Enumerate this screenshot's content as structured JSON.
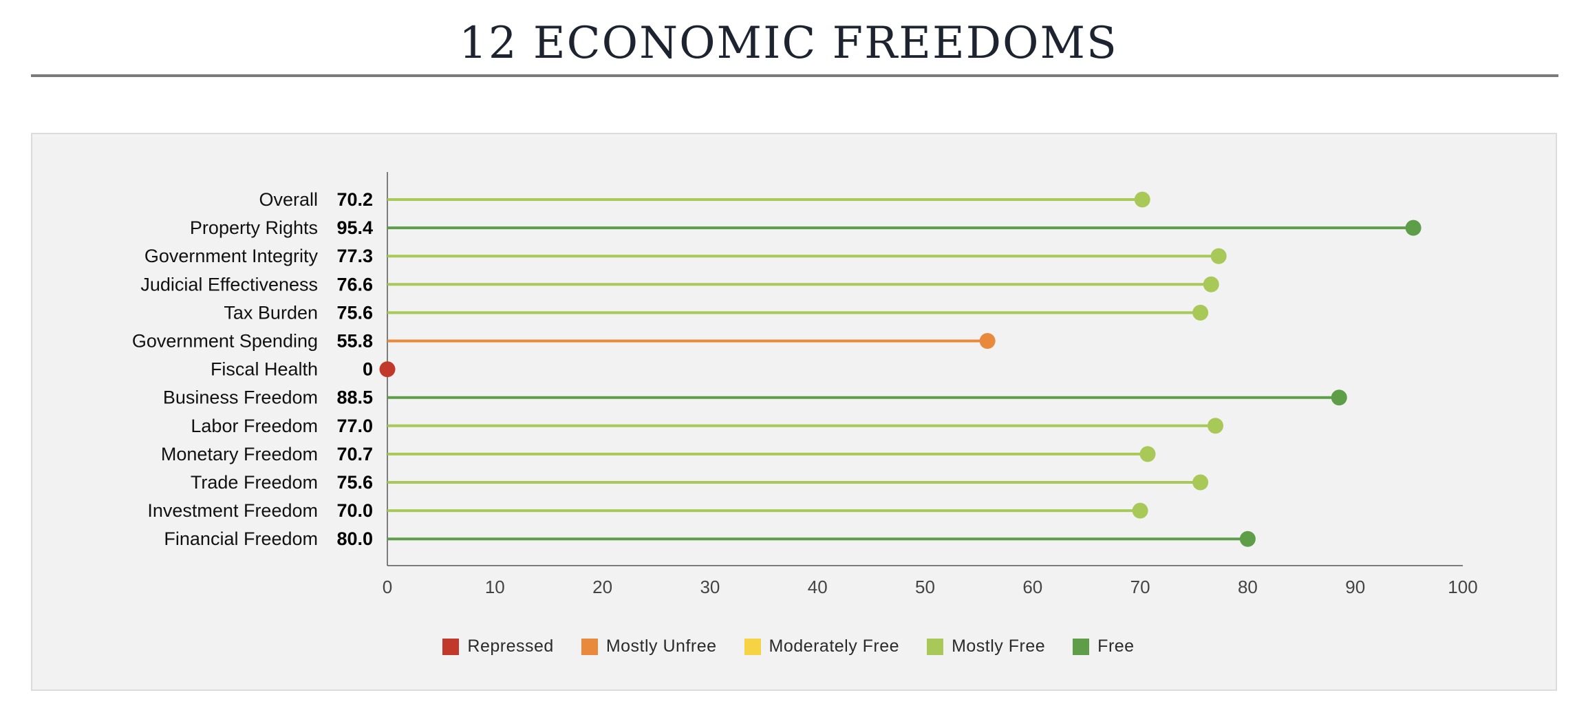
{
  "title": "12 ECONOMIC FREEDOMS",
  "chart_data": {
    "type": "lollipop",
    "categories": [
      "Overall",
      "Property Rights",
      "Government Integrity",
      "Judicial Effectiveness",
      "Tax Burden",
      "Government Spending",
      "Fiscal Health",
      "Business Freedom",
      "Labor Freedom",
      "Monetary Freedom",
      "Trade Freedom",
      "Investment Freedom",
      "Financial Freedom"
    ],
    "value_labels": [
      "70.2",
      "95.4",
      "77.3",
      "76.6",
      "75.6",
      "55.8",
      "0",
      "88.5",
      "77.0",
      "70.7",
      "75.6",
      "70.0",
      "80.0"
    ],
    "values": [
      70.2,
      95.4,
      77.3,
      76.6,
      75.6,
      55.8,
      0,
      88.5,
      77.0,
      70.7,
      75.6,
      70.0,
      80.0
    ],
    "classes": [
      "Mostly Free",
      "Free",
      "Mostly Free",
      "Mostly Free",
      "Mostly Free",
      "Mostly Unfree",
      "Repressed",
      "Free",
      "Mostly Free",
      "Mostly Free",
      "Mostly Free",
      "Mostly Free",
      "Free"
    ],
    "xlim": [
      0,
      100
    ],
    "xticks": [
      0,
      10,
      20,
      30,
      40,
      50,
      60,
      70,
      80,
      90,
      100
    ],
    "grid": false,
    "legend_position": "bottom",
    "legend": [
      {
        "label": "Repressed",
        "color": "#c0392b"
      },
      {
        "label": "Mostly Unfree",
        "color": "#e8893c"
      },
      {
        "label": "Moderately Free",
        "color": "#f5d343"
      },
      {
        "label": "Mostly Free",
        "color": "#a8c957"
      },
      {
        "label": "Free",
        "color": "#5e9e48"
      }
    ]
  }
}
